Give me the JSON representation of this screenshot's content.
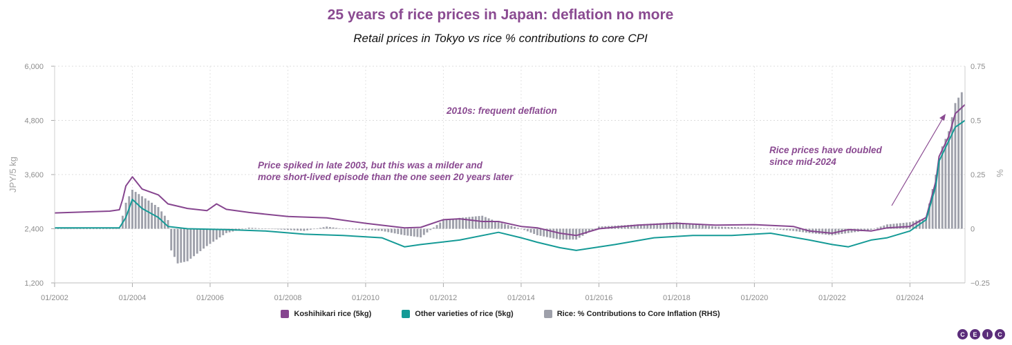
{
  "title": "25 years of rice prices in Japan: deflation no more",
  "subtitle": "Retail prices in Tokyo vs rice % contributions to core CPI",
  "colors": {
    "koshihikari": "#86458f",
    "other": "#149a96",
    "bars": "#9ea0aa",
    "annotation": "#8a4a91"
  },
  "annotations": {
    "a1_line1": "2010s: frequent deflation",
    "a2_line1": "Price spiked in late 2003, but this was a milder and",
    "a2_line2": "more short-lived episode than the one seen 20 years later",
    "a3_line1": "Rice prices have doubled",
    "a3_line2": "since mid-2024"
  },
  "legend": [
    {
      "label": "Koshihikari rice (5kg)",
      "color": "#86458f"
    },
    {
      "label": "Other varieties of rice (5kg)",
      "color": "#149a96"
    },
    {
      "label": "Rice: % Contributions to Core Inflation (RHS)",
      "color": "#9ea0aa"
    }
  ],
  "logo": [
    "C",
    "E",
    "I",
    "C"
  ],
  "chart_data": {
    "type": "line",
    "x_format": "MM/YYYY",
    "x_range": [
      "01/2002",
      "06/2025"
    ],
    "x_tick_labels": [
      "01/2002",
      "01/2004",
      "01/2006",
      "01/2008",
      "01/2010",
      "01/2012",
      "01/2014",
      "01/2016",
      "01/2018",
      "01/2020",
      "01/2022",
      "01/2024"
    ],
    "ylabel": "JPY/5 kg",
    "ylim": [
      1200,
      6000
    ],
    "y_ticks": [
      "1,200",
      "2,400",
      "3,600",
      "4,800",
      "6,000"
    ],
    "y2label": "%",
    "y2lim": [
      -0.25,
      0.75
    ],
    "y2_ticks": [
      "−0.25",
      "0",
      "0.25",
      "0.5",
      "0.75"
    ],
    "grid": true,
    "legend_position": "bottom",
    "series": [
      {
        "name": "Koshihikari rice (5kg)",
        "axis": "left",
        "kind": "line",
        "points": [
          [
            "2002-01",
            2750
          ],
          [
            "2003-06",
            2790
          ],
          [
            "2003-09",
            2820
          ],
          [
            "2003-10",
            3050
          ],
          [
            "2003-11",
            3350
          ],
          [
            "2004-01",
            3550
          ],
          [
            "2004-04",
            3280
          ],
          [
            "2004-09",
            3150
          ],
          [
            "2004-12",
            2950
          ],
          [
            "2005-06",
            2850
          ],
          [
            "2005-12",
            2800
          ],
          [
            "2006-03",
            2950
          ],
          [
            "2006-06",
            2830
          ],
          [
            "2007-01",
            2760
          ],
          [
            "2008-01",
            2670
          ],
          [
            "2009-01",
            2640
          ],
          [
            "2010-01",
            2520
          ],
          [
            "2011-01",
            2420
          ],
          [
            "2011-06",
            2430
          ],
          [
            "2012-01",
            2600
          ],
          [
            "2012-06",
            2620
          ],
          [
            "2013-01",
            2560
          ],
          [
            "2013-06",
            2560
          ],
          [
            "2014-01",
            2450
          ],
          [
            "2014-06",
            2420
          ],
          [
            "2015-01",
            2300
          ],
          [
            "2015-06",
            2250
          ],
          [
            "2016-01",
            2400
          ],
          [
            "2017-01",
            2480
          ],
          [
            "2018-01",
            2520
          ],
          [
            "2019-01",
            2480
          ],
          [
            "2020-01",
            2490
          ],
          [
            "2021-01",
            2450
          ],
          [
            "2021-06",
            2350
          ],
          [
            "2022-01",
            2300
          ],
          [
            "2022-06",
            2380
          ],
          [
            "2023-01",
            2350
          ],
          [
            "2023-06",
            2420
          ],
          [
            "2024-01",
            2450
          ],
          [
            "2024-06",
            2650
          ],
          [
            "2024-09",
            3450
          ],
          [
            "2024-10",
            4000
          ],
          [
            "2025-01",
            4450
          ],
          [
            "2025-03",
            4950
          ],
          [
            "2025-06",
            5150
          ]
        ]
      },
      {
        "name": "Other varieties of rice (5kg)",
        "axis": "left",
        "kind": "line",
        "points": [
          [
            "2002-01",
            2420
          ],
          [
            "2003-09",
            2420
          ],
          [
            "2003-11",
            2650
          ],
          [
            "2004-01",
            3050
          ],
          [
            "2004-04",
            2850
          ],
          [
            "2004-09",
            2650
          ],
          [
            "2004-12",
            2450
          ],
          [
            "2005-06",
            2400
          ],
          [
            "2006-06",
            2380
          ],
          [
            "2007-06",
            2350
          ],
          [
            "2008-06",
            2280
          ],
          [
            "2009-06",
            2250
          ],
          [
            "2010-06",
            2200
          ],
          [
            "2011-01",
            2000
          ],
          [
            "2011-06",
            2050
          ],
          [
            "2012-06",
            2150
          ],
          [
            "2013-06",
            2320
          ],
          [
            "2014-01",
            2200
          ],
          [
            "2014-06",
            2100
          ],
          [
            "2015-01",
            1980
          ],
          [
            "2015-06",
            1920
          ],
          [
            "2016-06",
            2050
          ],
          [
            "2017-06",
            2200
          ],
          [
            "2018-06",
            2250
          ],
          [
            "2019-06",
            2250
          ],
          [
            "2020-06",
            2300
          ],
          [
            "2021-06",
            2150
          ],
          [
            "2022-01",
            2050
          ],
          [
            "2022-06",
            2000
          ],
          [
            "2023-01",
            2150
          ],
          [
            "2023-06",
            2200
          ],
          [
            "2024-01",
            2350
          ],
          [
            "2024-06",
            2600
          ],
          [
            "2024-09",
            3350
          ],
          [
            "2024-10",
            3900
          ],
          [
            "2025-01",
            4350
          ],
          [
            "2025-03",
            4650
          ],
          [
            "2025-06",
            4800
          ]
        ]
      },
      {
        "name": "Rice: % Contributions to Core Inflation (RHS)",
        "axis": "right",
        "kind": "bar",
        "frequency": "monthly",
        "anchors": [
          [
            "2002-01",
            0
          ],
          [
            "2003-09",
            0
          ],
          [
            "2003-11",
            0.12
          ],
          [
            "2004-01",
            0.18
          ],
          [
            "2004-06",
            0.13
          ],
          [
            "2004-09",
            0.1
          ],
          [
            "2004-12",
            0.04
          ],
          [
            "2005-01",
            -0.1
          ],
          [
            "2005-03",
            -0.16
          ],
          [
            "2005-06",
            -0.15
          ],
          [
            "2005-12",
            -0.08
          ],
          [
            "2006-06",
            -0.02
          ],
          [
            "2007-01",
            0.005
          ],
          [
            "2008-06",
            -0.01
          ],
          [
            "2009-01",
            0.01
          ],
          [
            "2009-06",
            0.0
          ],
          [
            "2010-06",
            -0.01
          ],
          [
            "2011-01",
            -0.03
          ],
          [
            "2011-06",
            -0.04
          ],
          [
            "2012-01",
            0.04
          ],
          [
            "2012-06",
            0.05
          ],
          [
            "2013-01",
            0.06
          ],
          [
            "2013-06",
            0.03
          ],
          [
            "2014-01",
            0.0
          ],
          [
            "2014-06",
            -0.03
          ],
          [
            "2015-01",
            -0.05
          ],
          [
            "2015-06",
            -0.05
          ],
          [
            "2016-01",
            0.01
          ],
          [
            "2017-01",
            0.02
          ],
          [
            "2018-01",
            0.03
          ],
          [
            "2019-01",
            0.01
          ],
          [
            "2020-01",
            0.005
          ],
          [
            "2021-01",
            -0.01
          ],
          [
            "2021-06",
            -0.02
          ],
          [
            "2022-01",
            -0.03
          ],
          [
            "2022-06",
            -0.02
          ],
          [
            "2023-01",
            -0.005
          ],
          [
            "2023-06",
            0.02
          ],
          [
            "2024-01",
            0.03
          ],
          [
            "2024-06",
            0.05
          ],
          [
            "2024-09",
            0.25
          ],
          [
            "2024-11",
            0.38
          ],
          [
            "2025-01",
            0.45
          ],
          [
            "2025-03",
            0.58
          ],
          [
            "2025-05",
            0.63
          ]
        ]
      }
    ]
  }
}
